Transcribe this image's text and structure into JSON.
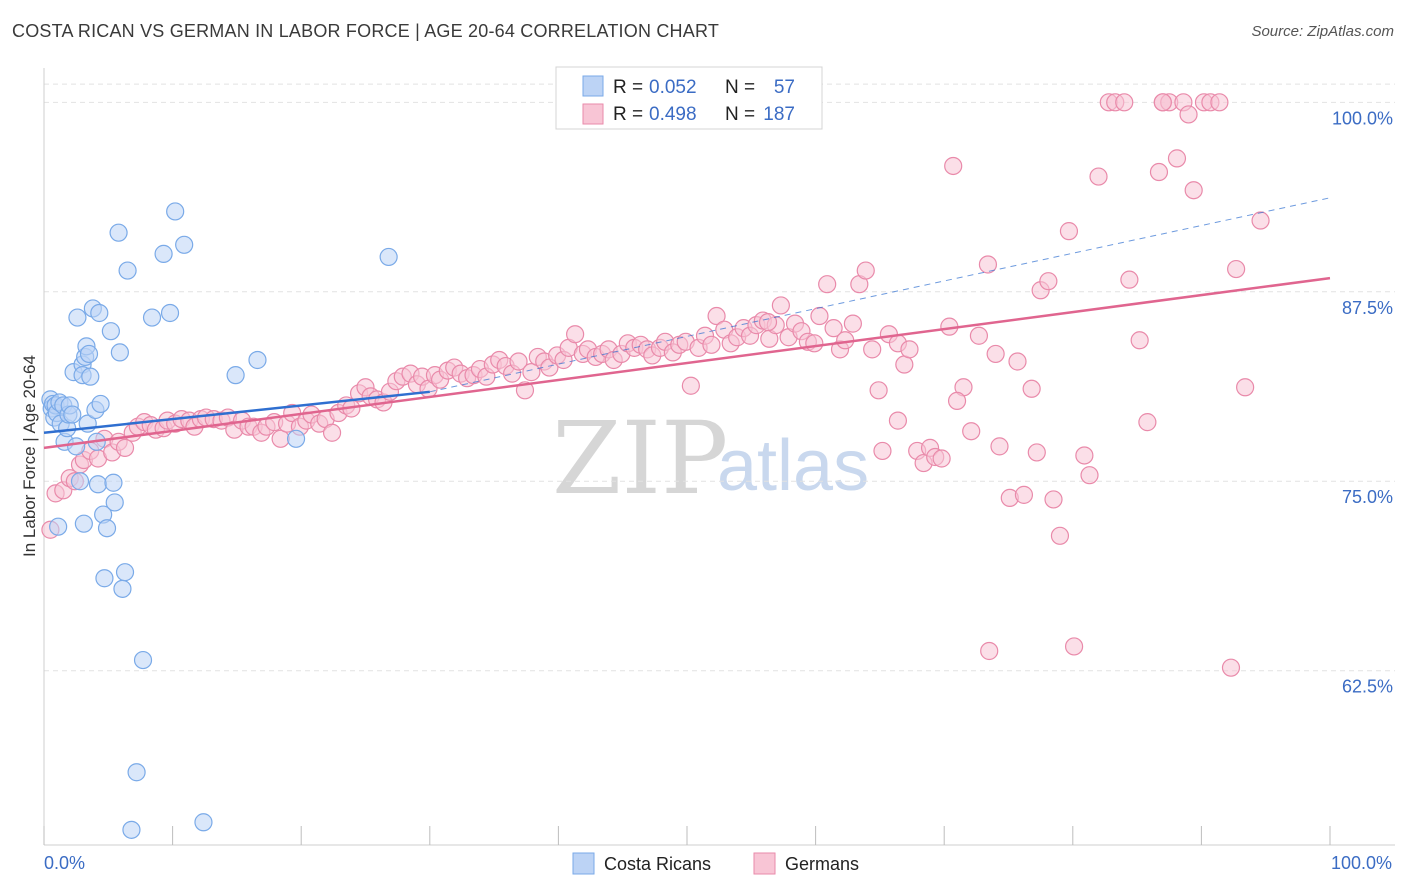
{
  "title": "COSTA RICAN VS GERMAN IN LABOR FORCE | AGE 20-64 CORRELATION CHART",
  "source": "Source: ZipAtlas.com",
  "watermark": {
    "zip": "ZIP",
    "atlas": "atlas"
  },
  "chart_data": {
    "type": "scatter",
    "ylabel": "In Labor Force | Age 20-64",
    "xlim": [
      0,
      100
    ],
    "ylim": [
      51.0,
      102.0
    ],
    "x_tick_labels": [
      "0.0%",
      "100.0%"
    ],
    "y_ticks": [
      {
        "value": 100.0,
        "label": "100.0%"
      },
      {
        "value": 87.5,
        "label": "87.5%"
      },
      {
        "value": 75.0,
        "label": "75.0%"
      },
      {
        "value": 62.5,
        "label": "62.5%"
      }
    ],
    "grid": "horizontal dashed",
    "legend": {
      "position": "top-center",
      "rows": [
        {
          "r_label": "R =",
          "r": "0.052",
          "n_label": "N =",
          "n": "57"
        },
        {
          "r_label": "R =",
          "r": "0.498",
          "n_label": "N =",
          "n": "187"
        }
      ]
    },
    "series": [
      {
        "name": "Costa Ricans",
        "color": "#7aaae8",
        "fill": "#bcd3f5",
        "trend": {
          "x0": 0,
          "y0": 78.2,
          "x1": 30,
          "y1": 80.9,
          "color": "#2f6fd0",
          "dashed_extension_to": 100
        },
        "points": [
          [
            0.5,
            80.4
          ],
          [
            0.6,
            79.8
          ],
          [
            0.7,
            80.1
          ],
          [
            0.8,
            79.2
          ],
          [
            0.9,
            80.0
          ],
          [
            1.0,
            79.5
          ],
          [
            1.2,
            80.2
          ],
          [
            1.3,
            78.8
          ],
          [
            1.5,
            80.0
          ],
          [
            1.6,
            77.6
          ],
          [
            1.8,
            78.5
          ],
          [
            1.9,
            79.4
          ],
          [
            2.0,
            80.0
          ],
          [
            2.2,
            79.4
          ],
          [
            2.3,
            82.2
          ],
          [
            2.5,
            77.3
          ],
          [
            2.6,
            85.8
          ],
          [
            2.8,
            75.0
          ],
          [
            3.0,
            82.7
          ],
          [
            3.0,
            82.0
          ],
          [
            3.2,
            83.2
          ],
          [
            3.3,
            83.9
          ],
          [
            3.4,
            78.8
          ],
          [
            3.5,
            83.4
          ],
          [
            3.6,
            81.9
          ],
          [
            3.8,
            86.4
          ],
          [
            4.0,
            79.7
          ],
          [
            4.1,
            77.6
          ],
          [
            4.2,
            74.8
          ],
          [
            4.3,
            86.1
          ],
          [
            4.4,
            80.1
          ],
          [
            4.6,
            72.8
          ],
          [
            4.7,
            68.6
          ],
          [
            4.9,
            71.9
          ],
          [
            5.2,
            84.9
          ],
          [
            5.4,
            74.9
          ],
          [
            5.5,
            73.6
          ],
          [
            5.8,
            91.4
          ],
          [
            5.9,
            83.5
          ],
          [
            6.1,
            67.9
          ],
          [
            6.3,
            69.0
          ],
          [
            6.5,
            88.9
          ],
          [
            6.8,
            52.0
          ],
          [
            7.2,
            55.8
          ],
          [
            7.7,
            63.2
          ],
          [
            8.4,
            85.8
          ],
          [
            9.3,
            90.0
          ],
          [
            9.8,
            86.1
          ],
          [
            10.2,
            92.8
          ],
          [
            10.9,
            90.6
          ],
          [
            12.4,
            52.5
          ],
          [
            14.9,
            82.0
          ],
          [
            16.6,
            83.0
          ],
          [
            19.6,
            77.8
          ],
          [
            26.8,
            89.8
          ],
          [
            1.1,
            72.0
          ],
          [
            3.1,
            72.2
          ]
        ]
      },
      {
        "name": "Germans",
        "color": "#e98aaa",
        "fill": "#f8c5d5",
        "trend": {
          "x0": 0,
          "y0": 77.2,
          "x1": 100,
          "y1": 88.4,
          "color": "#e0658f"
        },
        "points": [
          [
            0.5,
            71.8
          ],
          [
            0.9,
            74.2
          ],
          [
            1.5,
            74.4
          ],
          [
            2.0,
            75.2
          ],
          [
            2.4,
            75.0
          ],
          [
            2.8,
            76.1
          ],
          [
            3.1,
            76.4
          ],
          [
            3.6,
            77.0
          ],
          [
            4.2,
            76.5
          ],
          [
            4.7,
            77.8
          ],
          [
            5.3,
            76.9
          ],
          [
            5.8,
            77.6
          ],
          [
            6.3,
            77.2
          ],
          [
            6.9,
            78.2
          ],
          [
            7.3,
            78.6
          ],
          [
            7.8,
            78.9
          ],
          [
            8.3,
            78.7
          ],
          [
            8.7,
            78.4
          ],
          [
            9.3,
            78.5
          ],
          [
            9.6,
            79.0
          ],
          [
            10.2,
            78.8
          ],
          [
            10.7,
            79.1
          ],
          [
            11.3,
            79.0
          ],
          [
            11.7,
            78.6
          ],
          [
            12.2,
            79.1
          ],
          [
            12.6,
            79.2
          ],
          [
            13.2,
            79.1
          ],
          [
            13.8,
            79.0
          ],
          [
            14.3,
            79.2
          ],
          [
            14.8,
            78.4
          ],
          [
            15.4,
            79.0
          ],
          [
            15.9,
            78.6
          ],
          [
            16.3,
            78.6
          ],
          [
            16.9,
            78.2
          ],
          [
            17.3,
            78.6
          ],
          [
            17.9,
            78.9
          ],
          [
            18.4,
            77.8
          ],
          [
            18.9,
            78.8
          ],
          [
            19.3,
            79.5
          ],
          [
            19.9,
            78.6
          ],
          [
            20.4,
            79.0
          ],
          [
            20.8,
            79.4
          ],
          [
            21.4,
            78.8
          ],
          [
            21.9,
            79.1
          ],
          [
            22.4,
            78.2
          ],
          [
            22.9,
            79.5
          ],
          [
            23.5,
            80.0
          ],
          [
            23.9,
            79.8
          ],
          [
            24.5,
            80.8
          ],
          [
            25.0,
            81.2
          ],
          [
            25.4,
            80.6
          ],
          [
            25.9,
            80.4
          ],
          [
            26.4,
            80.2
          ],
          [
            26.9,
            80.9
          ],
          [
            27.4,
            81.6
          ],
          [
            27.9,
            81.9
          ],
          [
            28.5,
            82.1
          ],
          [
            29.0,
            81.4
          ],
          [
            29.4,
            81.9
          ],
          [
            29.9,
            81.1
          ],
          [
            30.4,
            82.0
          ],
          [
            30.8,
            81.7
          ],
          [
            31.4,
            82.3
          ],
          [
            31.9,
            82.5
          ],
          [
            32.4,
            82.1
          ],
          [
            32.9,
            81.8
          ],
          [
            33.4,
            82.0
          ],
          [
            33.9,
            82.4
          ],
          [
            34.4,
            81.9
          ],
          [
            34.9,
            82.7
          ],
          [
            35.4,
            83.0
          ],
          [
            35.9,
            82.6
          ],
          [
            36.4,
            82.1
          ],
          [
            36.9,
            82.9
          ],
          [
            37.4,
            81.0
          ],
          [
            37.9,
            82.2
          ],
          [
            38.4,
            83.2
          ],
          [
            38.9,
            82.9
          ],
          [
            39.3,
            82.5
          ],
          [
            39.9,
            83.3
          ],
          [
            40.4,
            83.0
          ],
          [
            40.8,
            83.8
          ],
          [
            41.3,
            84.7
          ],
          [
            41.9,
            83.4
          ],
          [
            42.3,
            83.7
          ],
          [
            42.9,
            83.2
          ],
          [
            43.4,
            83.4
          ],
          [
            43.9,
            83.7
          ],
          [
            44.3,
            83.0
          ],
          [
            44.9,
            83.4
          ],
          [
            45.4,
            84.1
          ],
          [
            45.9,
            83.8
          ],
          [
            46.4,
            84.0
          ],
          [
            46.9,
            83.7
          ],
          [
            47.3,
            83.3
          ],
          [
            47.9,
            83.8
          ],
          [
            48.3,
            84.2
          ],
          [
            48.9,
            83.5
          ],
          [
            49.4,
            84.0
          ],
          [
            49.9,
            84.2
          ],
          [
            50.3,
            81.3
          ],
          [
            50.9,
            83.8
          ],
          [
            51.4,
            84.6
          ],
          [
            51.9,
            84.0
          ],
          [
            52.3,
            85.9
          ],
          [
            52.9,
            85.0
          ],
          [
            53.4,
            84.1
          ],
          [
            53.9,
            84.5
          ],
          [
            54.4,
            85.1
          ],
          [
            54.9,
            84.6
          ],
          [
            55.4,
            85.3
          ],
          [
            55.9,
            85.6
          ],
          [
            56.4,
            84.4
          ],
          [
            56.9,
            85.3
          ],
          [
            57.3,
            86.6
          ],
          [
            57.9,
            84.5
          ],
          [
            58.4,
            85.4
          ],
          [
            58.9,
            84.9
          ],
          [
            59.4,
            84.2
          ],
          [
            59.9,
            84.1
          ],
          [
            60.3,
            85.9
          ],
          [
            60.9,
            88.0
          ],
          [
            61.4,
            85.1
          ],
          [
            61.9,
            83.7
          ],
          [
            62.3,
            84.3
          ],
          [
            62.9,
            85.4
          ],
          [
            63.4,
            88.0
          ],
          [
            63.9,
            88.9
          ],
          [
            64.4,
            83.7
          ],
          [
            64.9,
            81.0
          ],
          [
            65.2,
            77.0
          ],
          [
            65.7,
            84.7
          ],
          [
            66.4,
            84.1
          ],
          [
            66.9,
            82.7
          ],
          [
            67.3,
            83.7
          ],
          [
            67.9,
            77.0
          ],
          [
            68.4,
            76.2
          ],
          [
            68.9,
            77.2
          ],
          [
            69.3,
            76.6
          ],
          [
            69.8,
            76.5
          ],
          [
            70.4,
            85.2
          ],
          [
            70.7,
            95.8
          ],
          [
            71.5,
            81.2
          ],
          [
            72.1,
            78.3
          ],
          [
            72.7,
            84.6
          ],
          [
            73.4,
            89.3
          ],
          [
            74.0,
            83.4
          ],
          [
            74.3,
            77.3
          ],
          [
            75.1,
            73.9
          ],
          [
            75.7,
            82.9
          ],
          [
            76.2,
            74.1
          ],
          [
            76.8,
            81.1
          ],
          [
            77.2,
            76.9
          ],
          [
            77.5,
            87.6
          ],
          [
            78.1,
            88.2
          ],
          [
            78.5,
            73.8
          ],
          [
            79.0,
            71.4
          ],
          [
            79.7,
            91.5
          ],
          [
            80.1,
            64.1
          ],
          [
            80.9,
            76.7
          ],
          [
            81.3,
            75.4
          ],
          [
            82.0,
            95.1
          ],
          [
            82.8,
            100.0
          ],
          [
            83.3,
            100.0
          ],
          [
            84.0,
            100.0
          ],
          [
            84.4,
            88.3
          ],
          [
            85.2,
            84.3
          ],
          [
            85.8,
            78.9
          ],
          [
            86.7,
            95.4
          ],
          [
            87.0,
            100.0
          ],
          [
            87.5,
            100.0
          ],
          [
            88.1,
            96.3
          ],
          [
            88.6,
            100.0
          ],
          [
            89.0,
            99.2
          ],
          [
            89.4,
            94.2
          ],
          [
            90.2,
            100.0
          ],
          [
            90.7,
            100.0
          ],
          [
            91.4,
            100.0
          ],
          [
            92.3,
            62.7
          ],
          [
            92.7,
            89.0
          ],
          [
            93.4,
            81.2
          ],
          [
            94.6,
            92.2
          ],
          [
            71.0,
            80.3
          ],
          [
            73.5,
            63.8
          ],
          [
            66.4,
            79.0
          ],
          [
            56.3,
            85.5
          ],
          [
            87.0,
            100.0
          ]
        ]
      }
    ]
  },
  "bottom_legend": [
    "Costa Ricans",
    "Germans"
  ]
}
